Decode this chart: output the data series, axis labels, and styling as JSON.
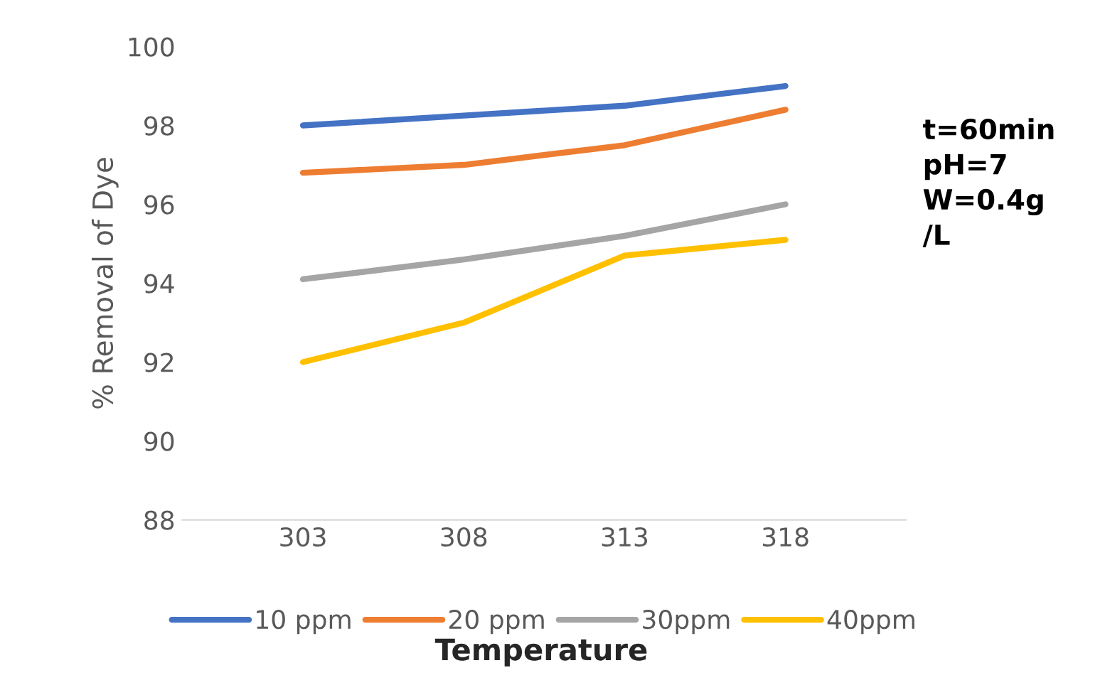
{
  "chart_data": {
    "type": "line",
    "xlabel": "Temperature",
    "ylabel": "% Removal of Dye",
    "categories": [
      "303",
      "308",
      "313",
      "318"
    ],
    "series": [
      {
        "name": "10 ppm",
        "color": "#4472c4",
        "values": [
          98.0,
          98.25,
          98.5,
          99.0
        ]
      },
      {
        "name": "20 ppm",
        "color": "#ed7d31",
        "values": [
          96.8,
          97.0,
          97.5,
          98.4
        ]
      },
      {
        "name": "30ppm",
        "color": "#a5a5a5",
        "values": [
          94.1,
          94.6,
          95.2,
          96.0
        ]
      },
      {
        "name": "40ppm",
        "color": "#ffc000",
        "values": [
          92.0,
          93.0,
          94.7,
          95.1
        ]
      }
    ],
    "ylim": [
      88,
      100
    ],
    "yticks": [
      88,
      90,
      92,
      94,
      96,
      98,
      100
    ],
    "annotations": [
      "t=60min\npH=7\nW=0.4g\n/L"
    ],
    "grid": false,
    "legend": "bottom",
    "marker": "none",
    "line_style": "solid"
  }
}
